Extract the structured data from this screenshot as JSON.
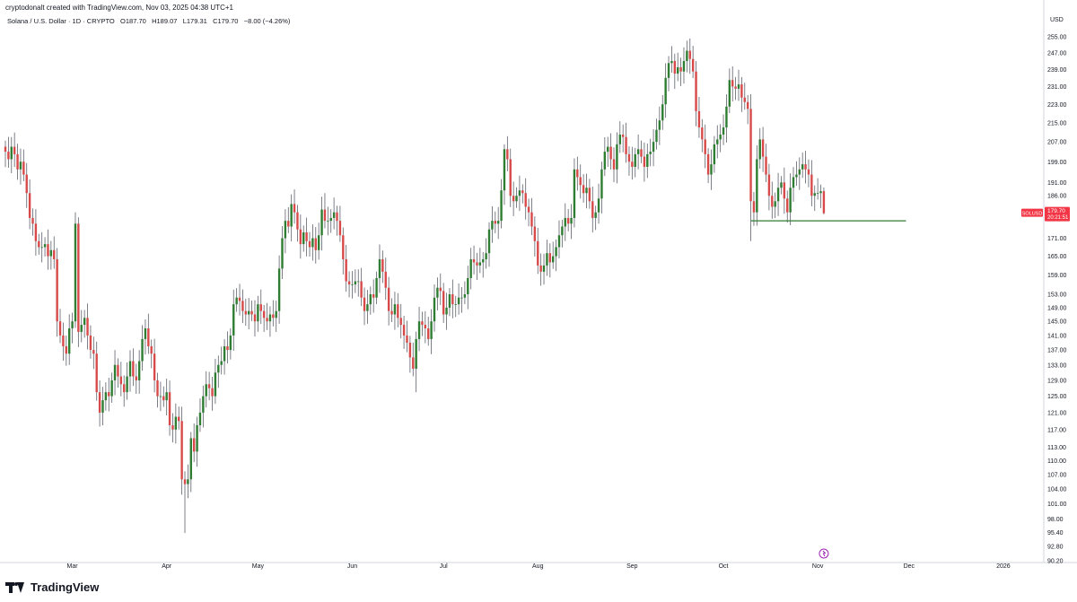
{
  "header": {
    "created_by": "cryptodonalt created with TradingView.com, Nov 03, 2025 04:38 UTC+1"
  },
  "legend": {
    "symbol": "Solana / U.S. Dollar · 1D · CRYPTO",
    "open": "O187.70",
    "high": "H189.07",
    "low": "L179.31",
    "close": "C179.70",
    "change": "−8.00 (−4.26%)"
  },
  "price_axis": {
    "currency": "USD",
    "labels": [
      "255.00",
      "247.00",
      "239.00",
      "231.00",
      "223.00",
      "215.00",
      "207.00",
      "199.00",
      "191.00",
      "186.00",
      "171.00",
      "165.00",
      "159.00",
      "153.00",
      "149.00",
      "145.00",
      "141.00",
      "137.00",
      "133.00",
      "129.00",
      "125.00",
      "121.00",
      "117.00",
      "113.00",
      "110.00",
      "107.00",
      "104.00",
      "101.00",
      "98.00",
      "95.40",
      "92.80",
      "90.20"
    ]
  },
  "price_tag": {
    "symbol": "SOLUSD",
    "price": "179.70",
    "countdown": "20:21:51",
    "color": "#f23645"
  },
  "time_axis": {
    "labels": [
      "Mar",
      "Apr",
      "May",
      "Jun",
      "Jul",
      "Aug",
      "Sep",
      "Oct",
      "Nov",
      "Dec",
      "2026"
    ]
  },
  "colors": {
    "up": "#089981",
    "down": "#f23645",
    "body_up": "#2e7d32",
    "body_down": "#d84a4a",
    "support_line": "#2e7d32"
  },
  "brand": {
    "name": "TradingView"
  },
  "chart_data": {
    "type": "candlestick",
    "title": "Solana / U.S. Dollar · 1D · CRYPTO",
    "ylabel": "USD",
    "scale": "log",
    "ylim": [
      90.2,
      260
    ],
    "x_range": [
      "2025-02-07",
      "2026-01-14"
    ],
    "support_level": {
      "price": 177.0,
      "from": "2025-10-10",
      "to": "2025-11-30"
    },
    "last": {
      "date": "2025-11-03",
      "open": 187.7,
      "high": 189.07,
      "low": 179.31,
      "close": 179.7
    },
    "closes": [
      {
        "date": "2025-02-07",
        "c": 203
      },
      {
        "date": "2025-02-08",
        "c": 200
      },
      {
        "date": "2025-02-09",
        "c": 205
      },
      {
        "date": "2025-02-10",
        "c": 202
      },
      {
        "date": "2025-02-11",
        "c": 196
      },
      {
        "date": "2025-02-12",
        "c": 199
      },
      {
        "date": "2025-02-13",
        "c": 194
      },
      {
        "date": "2025-02-14",
        "c": 187
      },
      {
        "date": "2025-02-15",
        "c": 178
      },
      {
        "date": "2025-02-16",
        "c": 176
      },
      {
        "date": "2025-02-17",
        "c": 170
      },
      {
        "date": "2025-02-18",
        "c": 168
      },
      {
        "date": "2025-02-19",
        "c": 168
      },
      {
        "date": "2025-02-20",
        "c": 169
      },
      {
        "date": "2025-02-21",
        "c": 165
      },
      {
        "date": "2025-02-22",
        "c": 167
      },
      {
        "date": "2025-02-23",
        "c": 164
      },
      {
        "date": "2025-02-24",
        "c": 145
      },
      {
        "date": "2025-02-25",
        "c": 141
      },
      {
        "date": "2025-02-26",
        "c": 138
      },
      {
        "date": "2025-02-27",
        "c": 136
      },
      {
        "date": "2025-02-28",
        "c": 143
      },
      {
        "date": "2025-03-01",
        "c": 145
      },
      {
        "date": "2025-03-02",
        "c": 176
      },
      {
        "date": "2025-03-03",
        "c": 142
      },
      {
        "date": "2025-03-04",
        "c": 144
      },
      {
        "date": "2025-03-05",
        "c": 146
      },
      {
        "date": "2025-03-06",
        "c": 141
      },
      {
        "date": "2025-03-07",
        "c": 137
      },
      {
        "date": "2025-03-08",
        "c": 136
      },
      {
        "date": "2025-03-09",
        "c": 126
      },
      {
        "date": "2025-03-10",
        "c": 121
      },
      {
        "date": "2025-03-11",
        "c": 124
      },
      {
        "date": "2025-03-12",
        "c": 126
      },
      {
        "date": "2025-03-13",
        "c": 125
      },
      {
        "date": "2025-03-14",
        "c": 129
      },
      {
        "date": "2025-03-15",
        "c": 133
      },
      {
        "date": "2025-03-16",
        "c": 130
      },
      {
        "date": "2025-03-17",
        "c": 128
      },
      {
        "date": "2025-03-18",
        "c": 126
      },
      {
        "date": "2025-03-19",
        "c": 130
      },
      {
        "date": "2025-03-20",
        "c": 134
      },
      {
        "date": "2025-03-21",
        "c": 130
      },
      {
        "date": "2025-03-22",
        "c": 129
      },
      {
        "date": "2025-03-23",
        "c": 134
      },
      {
        "date": "2025-03-24",
        "c": 140
      },
      {
        "date": "2025-03-25",
        "c": 143
      },
      {
        "date": "2025-03-26",
        "c": 138
      },
      {
        "date": "2025-03-27",
        "c": 136
      },
      {
        "date": "2025-03-28",
        "c": 129
      },
      {
        "date": "2025-03-29",
        "c": 125
      },
      {
        "date": "2025-03-30",
        "c": 125
      },
      {
        "date": "2025-03-31",
        "c": 124
      },
      {
        "date": "2025-04-01",
        "c": 126
      },
      {
        "date": "2025-04-02",
        "c": 118
      },
      {
        "date": "2025-04-03",
        "c": 117
      },
      {
        "date": "2025-04-04",
        "c": 120
      },
      {
        "date": "2025-04-05",
        "c": 119
      },
      {
        "date": "2025-04-06",
        "c": 106
      },
      {
        "date": "2025-04-07",
        "c": 105
      },
      {
        "date": "2025-04-08",
        "c": 106
      },
      {
        "date": "2025-04-09",
        "c": 115
      },
      {
        "date": "2025-04-10",
        "c": 112
      },
      {
        "date": "2025-04-11",
        "c": 118
      },
      {
        "date": "2025-04-12",
        "c": 121
      },
      {
        "date": "2025-04-13",
        "c": 125
      },
      {
        "date": "2025-04-14",
        "c": 128
      },
      {
        "date": "2025-04-15",
        "c": 127
      },
      {
        "date": "2025-04-16",
        "c": 125
      },
      {
        "date": "2025-04-17",
        "c": 131
      },
      {
        "date": "2025-04-18",
        "c": 133
      },
      {
        "date": "2025-04-19",
        "c": 134
      },
      {
        "date": "2025-04-20",
        "c": 138
      },
      {
        "date": "2025-04-21",
        "c": 137
      },
      {
        "date": "2025-04-22",
        "c": 141
      },
      {
        "date": "2025-04-23",
        "c": 150
      },
      {
        "date": "2025-04-24",
        "c": 152
      },
      {
        "date": "2025-04-25",
        "c": 151
      },
      {
        "date": "2025-04-26",
        "c": 148
      },
      {
        "date": "2025-04-27",
        "c": 147
      },
      {
        "date": "2025-04-28",
        "c": 148
      },
      {
        "date": "2025-04-29",
        "c": 147
      },
      {
        "date": "2025-04-30",
        "c": 145
      },
      {
        "date": "2025-05-01",
        "c": 150
      },
      {
        "date": "2025-05-02",
        "c": 148
      },
      {
        "date": "2025-05-03",
        "c": 146
      },
      {
        "date": "2025-05-04",
        "c": 145
      },
      {
        "date": "2025-05-05",
        "c": 147
      },
      {
        "date": "2025-05-06",
        "c": 146
      },
      {
        "date": "2025-05-07",
        "c": 148
      },
      {
        "date": "2025-05-08",
        "c": 161
      },
      {
        "date": "2025-05-09",
        "c": 171
      },
      {
        "date": "2025-05-10",
        "c": 177
      },
      {
        "date": "2025-05-11",
        "c": 175
      },
      {
        "date": "2025-05-12",
        "c": 183
      },
      {
        "date": "2025-05-13",
        "c": 180
      },
      {
        "date": "2025-05-14",
        "c": 174
      },
      {
        "date": "2025-05-15",
        "c": 169
      },
      {
        "date": "2025-05-16",
        "c": 173
      },
      {
        "date": "2025-05-17",
        "c": 170
      },
      {
        "date": "2025-05-18",
        "c": 168
      },
      {
        "date": "2025-05-19",
        "c": 171
      },
      {
        "date": "2025-05-20",
        "c": 167
      },
      {
        "date": "2025-05-21",
        "c": 172
      },
      {
        "date": "2025-05-22",
        "c": 181
      },
      {
        "date": "2025-05-23",
        "c": 177
      },
      {
        "date": "2025-05-24",
        "c": 177
      },
      {
        "date": "2025-05-25",
        "c": 178
      },
      {
        "date": "2025-05-26",
        "c": 180
      },
      {
        "date": "2025-05-27",
        "c": 177
      },
      {
        "date": "2025-05-28",
        "c": 172
      },
      {
        "date": "2025-05-29",
        "c": 164
      },
      {
        "date": "2025-05-30",
        "c": 157
      },
      {
        "date": "2025-05-31",
        "c": 156
      },
      {
        "date": "2025-06-01",
        "c": 156
      },
      {
        "date": "2025-06-02",
        "c": 157
      },
      {
        "date": "2025-06-03",
        "c": 157
      },
      {
        "date": "2025-06-04",
        "c": 152
      },
      {
        "date": "2025-06-05",
        "c": 148
      },
      {
        "date": "2025-06-06",
        "c": 150
      },
      {
        "date": "2025-06-07",
        "c": 153
      },
      {
        "date": "2025-06-08",
        "c": 152
      },
      {
        "date": "2025-06-09",
        "c": 158
      },
      {
        "date": "2025-06-10",
        "c": 164
      },
      {
        "date": "2025-06-11",
        "c": 160
      },
      {
        "date": "2025-06-12",
        "c": 155
      },
      {
        "date": "2025-06-13",
        "c": 148
      },
      {
        "date": "2025-06-14",
        "c": 147
      },
      {
        "date": "2025-06-15",
        "c": 150
      },
      {
        "date": "2025-06-16",
        "c": 146
      },
      {
        "date": "2025-06-17",
        "c": 144
      },
      {
        "date": "2025-06-18",
        "c": 141
      },
      {
        "date": "2025-06-19",
        "c": 139
      },
      {
        "date": "2025-06-20",
        "c": 135
      },
      {
        "date": "2025-06-21",
        "c": 132
      },
      {
        "date": "2025-06-22",
        "c": 140
      },
      {
        "date": "2025-06-23",
        "c": 145
      },
      {
        "date": "2025-06-24",
        "c": 144
      },
      {
        "date": "2025-06-25",
        "c": 143
      },
      {
        "date": "2025-06-26",
        "c": 140
      },
      {
        "date": "2025-06-27",
        "c": 145
      },
      {
        "date": "2025-06-28",
        "c": 152
      },
      {
        "date": "2025-06-29",
        "c": 155
      },
      {
        "date": "2025-06-30",
        "c": 154
      },
      {
        "date": "2025-07-01",
        "c": 147
      },
      {
        "date": "2025-07-02",
        "c": 149
      },
      {
        "date": "2025-07-03",
        "c": 153
      },
      {
        "date": "2025-07-04",
        "c": 150
      },
      {
        "date": "2025-07-05",
        "c": 150
      },
      {
        "date": "2025-07-06",
        "c": 152
      },
      {
        "date": "2025-07-07",
        "c": 152
      },
      {
        "date": "2025-07-08",
        "c": 153
      },
      {
        "date": "2025-07-09",
        "c": 158
      },
      {
        "date": "2025-07-10",
        "c": 164
      },
      {
        "date": "2025-07-11",
        "c": 163
      },
      {
        "date": "2025-07-12",
        "c": 162
      },
      {
        "date": "2025-07-13",
        "c": 163
      },
      {
        "date": "2025-07-14",
        "c": 164
      },
      {
        "date": "2025-07-15",
        "c": 166
      },
      {
        "date": "2025-07-16",
        "c": 174
      },
      {
        "date": "2025-07-17",
        "c": 177
      },
      {
        "date": "2025-07-18",
        "c": 176
      },
      {
        "date": "2025-07-19",
        "c": 177
      },
      {
        "date": "2025-07-20",
        "c": 188
      },
      {
        "date": "2025-07-21",
        "c": 204
      },
      {
        "date": "2025-07-22",
        "c": 200
      },
      {
        "date": "2025-07-23",
        "c": 186
      },
      {
        "date": "2025-07-24",
        "c": 184
      },
      {
        "date": "2025-07-25",
        "c": 186
      },
      {
        "date": "2025-07-26",
        "c": 188
      },
      {
        "date": "2025-07-27",
        "c": 187
      },
      {
        "date": "2025-07-28",
        "c": 182
      },
      {
        "date": "2025-07-29",
        "c": 180
      },
      {
        "date": "2025-07-30",
        "c": 175
      },
      {
        "date": "2025-07-31",
        "c": 170
      },
      {
        "date": "2025-08-01",
        "c": 162
      },
      {
        "date": "2025-08-02",
        "c": 160
      },
      {
        "date": "2025-08-03",
        "c": 162
      },
      {
        "date": "2025-08-04",
        "c": 166
      },
      {
        "date": "2025-08-05",
        "c": 163
      },
      {
        "date": "2025-08-06",
        "c": 165
      },
      {
        "date": "2025-08-07",
        "c": 168
      },
      {
        "date": "2025-08-08",
        "c": 172
      },
      {
        "date": "2025-08-09",
        "c": 175
      },
      {
        "date": "2025-08-10",
        "c": 178
      },
      {
        "date": "2025-08-11",
        "c": 176
      },
      {
        "date": "2025-08-12",
        "c": 178
      },
      {
        "date": "2025-08-13",
        "c": 196
      },
      {
        "date": "2025-08-14",
        "c": 193
      },
      {
        "date": "2025-08-15",
        "c": 190
      },
      {
        "date": "2025-08-16",
        "c": 187
      },
      {
        "date": "2025-08-17",
        "c": 189
      },
      {
        "date": "2025-08-18",
        "c": 184
      },
      {
        "date": "2025-08-19",
        "c": 178
      },
      {
        "date": "2025-08-20",
        "c": 180
      },
      {
        "date": "2025-08-21",
        "c": 185
      },
      {
        "date": "2025-08-22",
        "c": 196
      },
      {
        "date": "2025-08-23",
        "c": 203
      },
      {
        "date": "2025-08-24",
        "c": 205
      },
      {
        "date": "2025-08-25",
        "c": 200
      },
      {
        "date": "2025-08-26",
        "c": 196
      },
      {
        "date": "2025-08-27",
        "c": 206
      },
      {
        "date": "2025-08-28",
        "c": 210
      },
      {
        "date": "2025-08-29",
        "c": 209
      },
      {
        "date": "2025-08-30",
        "c": 202
      },
      {
        "date": "2025-08-31",
        "c": 199
      },
      {
        "date": "2025-09-01",
        "c": 197
      },
      {
        "date": "2025-09-02",
        "c": 202
      },
      {
        "date": "2025-09-03",
        "c": 204
      },
      {
        "date": "2025-09-04",
        "c": 201
      },
      {
        "date": "2025-09-05",
        "c": 197
      },
      {
        "date": "2025-09-06",
        "c": 202
      },
      {
        "date": "2025-09-07",
        "c": 203
      },
      {
        "date": "2025-09-08",
        "c": 207
      },
      {
        "date": "2025-09-09",
        "c": 212
      },
      {
        "date": "2025-09-10",
        "c": 216
      },
      {
        "date": "2025-09-11",
        "c": 223
      },
      {
        "date": "2025-09-12",
        "c": 235
      },
      {
        "date": "2025-09-13",
        "c": 242
      },
      {
        "date": "2025-09-14",
        "c": 243
      },
      {
        "date": "2025-09-15",
        "c": 237
      },
      {
        "date": "2025-09-16",
        "c": 240
      },
      {
        "date": "2025-09-17",
        "c": 238
      },
      {
        "date": "2025-09-18",
        "c": 243
      },
      {
        "date": "2025-09-19",
        "c": 248
      },
      {
        "date": "2025-09-20",
        "c": 244
      },
      {
        "date": "2025-09-21",
        "c": 238
      },
      {
        "date": "2025-09-22",
        "c": 220
      },
      {
        "date": "2025-09-23",
        "c": 213
      },
      {
        "date": "2025-09-24",
        "c": 208
      },
      {
        "date": "2025-09-25",
        "c": 202
      },
      {
        "date": "2025-09-26",
        "c": 194
      },
      {
        "date": "2025-09-27",
        "c": 198
      },
      {
        "date": "2025-09-28",
        "c": 206
      },
      {
        "date": "2025-09-29",
        "c": 208
      },
      {
        "date": "2025-09-30",
        "c": 210
      },
      {
        "date": "2025-10-01",
        "c": 213
      },
      {
        "date": "2025-10-02",
        "c": 222
      },
      {
        "date": "2025-10-03",
        "c": 234
      },
      {
        "date": "2025-10-04",
        "c": 231
      },
      {
        "date": "2025-10-05",
        "c": 230
      },
      {
        "date": "2025-10-06",
        "c": 232
      },
      {
        "date": "2025-10-07",
        "c": 226
      },
      {
        "date": "2025-10-08",
        "c": 224
      },
      {
        "date": "2025-10-09",
        "c": 221
      },
      {
        "date": "2025-10-10",
        "c": 184
      },
      {
        "date": "2025-10-11",
        "c": 180
      },
      {
        "date": "2025-10-12",
        "c": 200
      },
      {
        "date": "2025-10-13",
        "c": 208
      },
      {
        "date": "2025-10-14",
        "c": 201
      },
      {
        "date": "2025-10-15",
        "c": 194
      },
      {
        "date": "2025-10-16",
        "c": 186
      },
      {
        "date": "2025-10-17",
        "c": 182
      },
      {
        "date": "2025-10-18",
        "c": 184
      },
      {
        "date": "2025-10-19",
        "c": 189
      },
      {
        "date": "2025-10-20",
        "c": 191
      },
      {
        "date": "2025-10-21",
        "c": 185
      },
      {
        "date": "2025-10-22",
        "c": 180
      },
      {
        "date": "2025-10-23",
        "c": 189
      },
      {
        "date": "2025-10-24",
        "c": 193
      },
      {
        "date": "2025-10-25",
        "c": 194
      },
      {
        "date": "2025-10-26",
        "c": 196
      },
      {
        "date": "2025-10-27",
        "c": 198
      },
      {
        "date": "2025-10-28",
        "c": 196
      },
      {
        "date": "2025-10-29",
        "c": 194
      },
      {
        "date": "2025-10-30",
        "c": 186
      },
      {
        "date": "2025-10-31",
        "c": 187
      },
      {
        "date": "2025-11-01",
        "c": 187
      },
      {
        "date": "2025-11-02",
        "c": 187.7
      },
      {
        "date": "2025-11-03",
        "c": 179.7
      }
    ]
  }
}
